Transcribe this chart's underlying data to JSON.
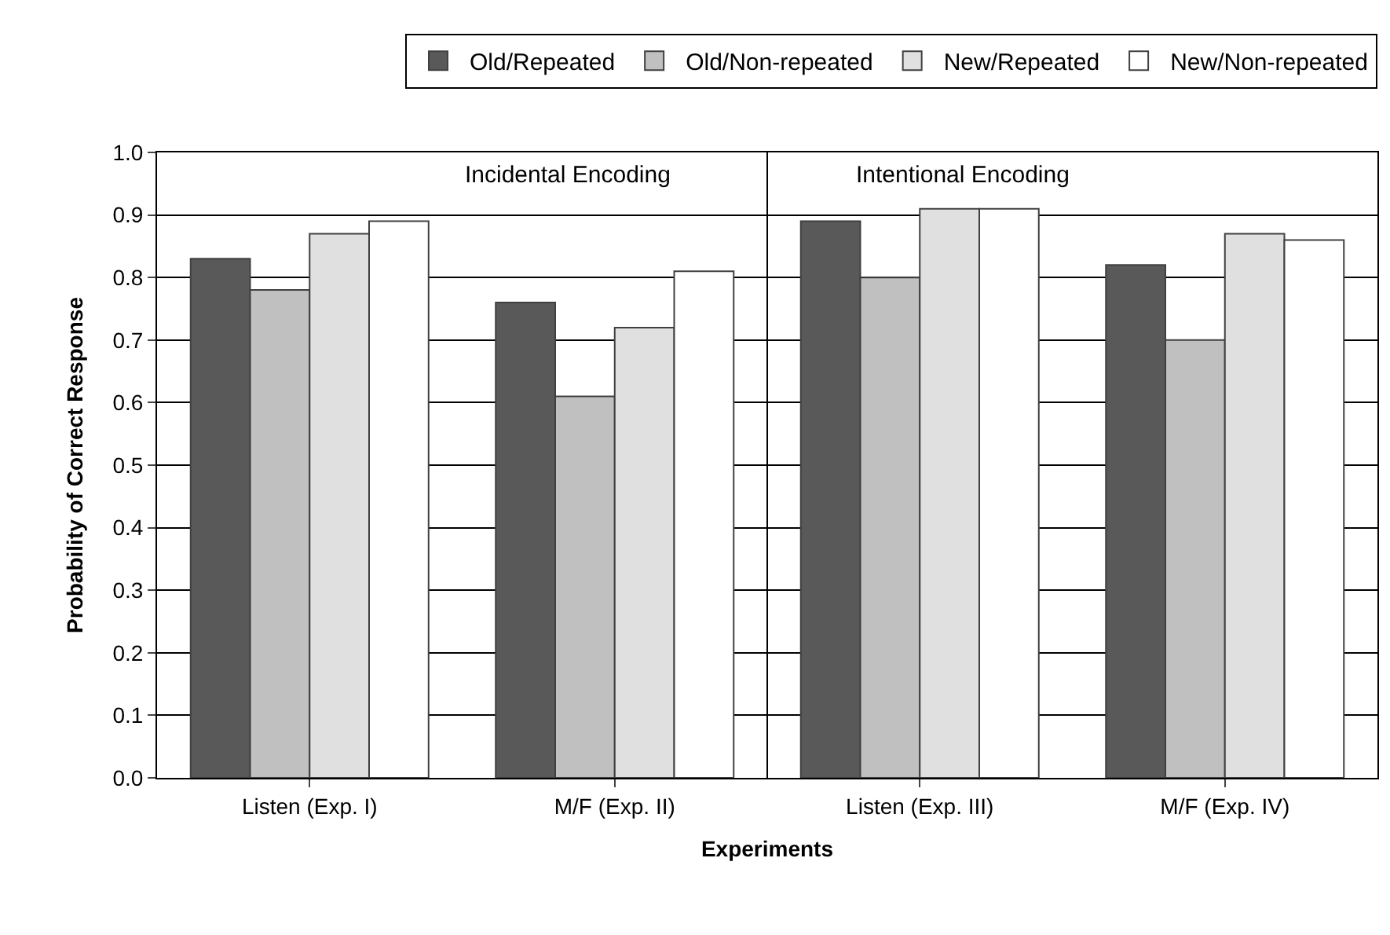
{
  "chart_data": {
    "type": "bar",
    "xlabel": "Experiments",
    "ylabel": "Probability of Correct Response",
    "categories": [
      "Listen (Exp. I)",
      "M/F (Exp. II)",
      "Listen (Exp. III)",
      "M/F (Exp. IV)"
    ],
    "series": [
      {
        "name": "Old/Repeated",
        "color": "#595959",
        "values": [
          0.83,
          0.76,
          0.89,
          0.82
        ]
      },
      {
        "name": "Old/Non-repeated",
        "color": "#c0c0c0",
        "values": [
          0.78,
          0.61,
          0.8,
          0.7
        ]
      },
      {
        "name": "New/Repeated",
        "color": "#e0e0e0",
        "values": [
          0.87,
          0.72,
          0.91,
          0.87
        ]
      },
      {
        "name": "New/Non-repeated",
        "color": "#ffffff",
        "values": [
          0.89,
          0.81,
          0.91,
          0.86
        ]
      }
    ],
    "ylim": [
      0,
      1.0
    ],
    "yticks": [
      {
        "value": 0,
        "label": "0.0"
      },
      {
        "value": 0.1,
        "label": "0.1"
      },
      {
        "value": 0.2,
        "label": "0.2"
      },
      {
        "value": 0.3,
        "label": "0.3"
      },
      {
        "value": 0.4,
        "label": "0.4"
      },
      {
        "value": 0.5,
        "label": "0.5"
      },
      {
        "value": 0.6,
        "label": "0.6"
      },
      {
        "value": 0.7,
        "label": "0.7"
      },
      {
        "value": 0.8,
        "label": "0.8"
      },
      {
        "value": 0.9,
        "label": "0.9"
      },
      {
        "value": 1.0,
        "label": "1.0"
      }
    ],
    "annotations": [
      "Incidental Encoding",
      "Intentional Encoding"
    ],
    "grid": "y",
    "legend": "top"
  }
}
